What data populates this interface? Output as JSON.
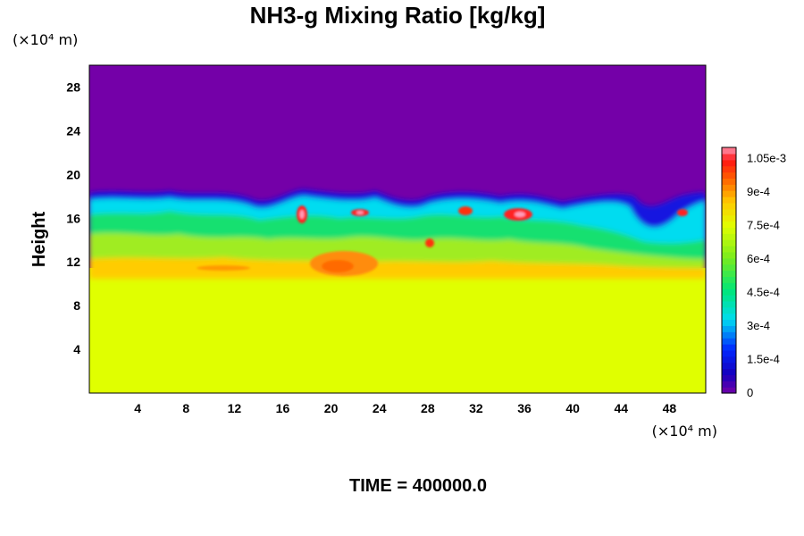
{
  "chart_data": {
    "type": "heatmap",
    "title": "NH3-g Mixing Ratio [kg/kg]",
    "ylabel": "Height",
    "x_unit_label": "(×10⁴ m)",
    "y_unit_label": "(×10⁴ m)",
    "footer": "TIME = 400000.0",
    "xlim": [
      0,
      51
    ],
    "ylim": [
      0,
      30
    ],
    "x_ticks": [
      4,
      8,
      12,
      16,
      20,
      24,
      28,
      32,
      36,
      40,
      44,
      48
    ],
    "y_ticks": [
      4,
      8,
      12,
      16,
      20,
      24,
      28
    ],
    "colorbar": {
      "min": 0,
      "max": 0.0011,
      "tick_values": [
        0,
        0.00015,
        0.0003,
        0.00045,
        0.0006,
        0.00075,
        0.0009,
        0.00105
      ],
      "tick_labels": [
        "0",
        "1.5e-4",
        "3e-4",
        "4.5e-4",
        "6e-4",
        "7.5e-4",
        "9e-4",
        "1.05e-3"
      ]
    },
    "field_summary": {
      "upper_layer": {
        "height_range": [
          18,
          30
        ],
        "value": 0
      },
      "lower_layer": {
        "height_range": [
          0,
          11
        ],
        "value": 0.00075
      },
      "transition_layer": {
        "height_range": [
          11,
          18
        ],
        "value_range": [
          0.0001,
          0.0011
        ]
      }
    }
  }
}
